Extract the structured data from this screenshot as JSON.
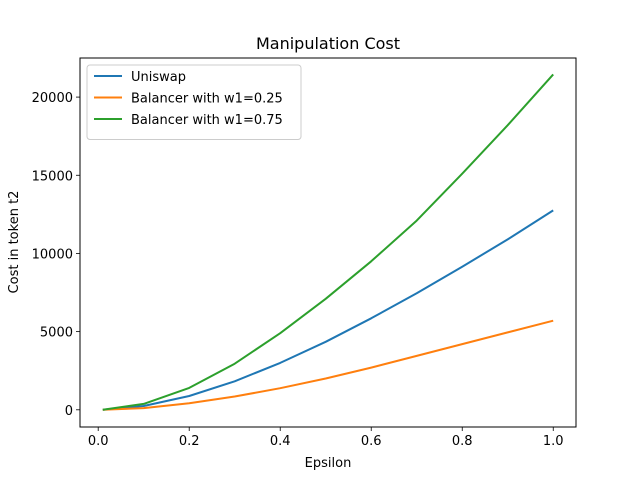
{
  "chart_data": {
    "type": "line",
    "title": "Manipulation Cost",
    "xlabel": "Epsilon",
    "ylabel": "Cost in token t2",
    "xlim": [
      -0.04,
      1.05
    ],
    "ylim": [
      -1100,
      22500
    ],
    "xticks": [
      0.0,
      0.2,
      0.4,
      0.6,
      0.8,
      1.0
    ],
    "xtick_labels": [
      "0.0",
      "0.2",
      "0.4",
      "0.6",
      "0.8",
      "1.0"
    ],
    "yticks": [
      0,
      5000,
      10000,
      15000,
      20000
    ],
    "ytick_labels": [
      "0",
      "5000",
      "10000",
      "15000",
      "20000"
    ],
    "grid": false,
    "legend_position": "top-left",
    "x": [
      0.01,
      0.1,
      0.2,
      0.3,
      0.4,
      0.5,
      0.6,
      0.7,
      0.8,
      0.9,
      1.0
    ],
    "series": [
      {
        "name": "Uniswap",
        "color": "#1f77b4",
        "values": [
          2,
          240,
          880,
          1820,
          3000,
          4350,
          5850,
          7450,
          9150,
          10900,
          12750
        ]
      },
      {
        "name": "Balancer with w1=0.25",
        "color": "#ff7f0e",
        "values": [
          1,
          110,
          420,
          850,
          1380,
          2000,
          2700,
          3450,
          4200,
          4950,
          5700
        ]
      },
      {
        "name": "Balancer with w1=0.75",
        "color": "#2ca02c",
        "values": [
          4,
          380,
          1400,
          2950,
          4900,
          7100,
          9500,
          12100,
          15100,
          18200,
          21450
        ]
      }
    ]
  }
}
